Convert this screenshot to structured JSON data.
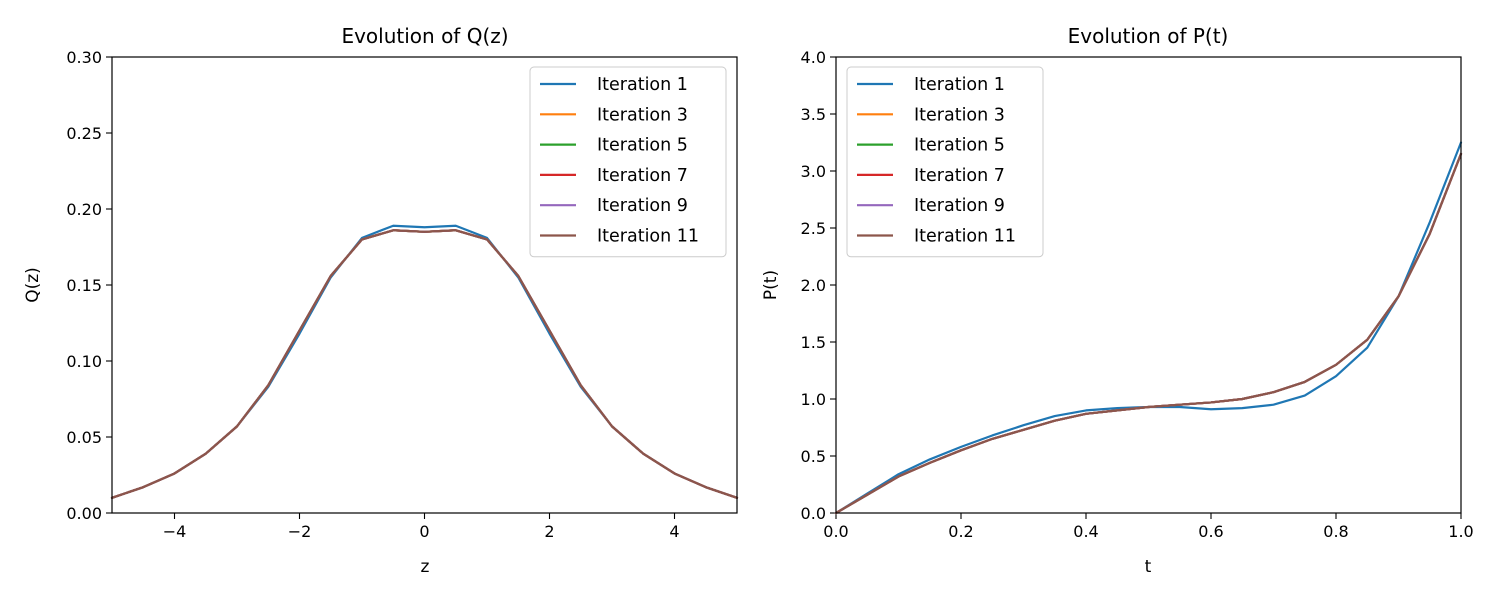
{
  "colors": {
    "Iteration 1": "#1f77b4",
    "Iteration 3": "#ff7f0e",
    "Iteration 5": "#2ca02c",
    "Iteration 7": "#d62728",
    "Iteration 9": "#9467bd",
    "Iteration 11": "#8c564b"
  },
  "chart_data": [
    {
      "type": "line",
      "title": "Evolution of Q(z)",
      "xlabel": "z",
      "ylabel": "Q(z)",
      "xlim": [
        -5,
        5
      ],
      "ylim": [
        0,
        0.3
      ],
      "xticks": [
        -4,
        -2,
        0,
        2,
        4
      ],
      "xtick_labels": [
        "−4",
        "−2",
        "0",
        "2",
        "4"
      ],
      "yticks": [
        0,
        0.05,
        0.1,
        0.15,
        0.2,
        0.25,
        0.3
      ],
      "ytick_labels": [
        "0.00",
        "0.05",
        "0.10",
        "0.15",
        "0.20",
        "0.25",
        "0.30"
      ],
      "legend_position": "top-right",
      "series": [
        {
          "name": "Iteration 1",
          "x": [
            -5,
            -4.5,
            -4,
            -3.5,
            -3,
            -2.5,
            -2,
            -1.5,
            -1,
            -0.5,
            0,
            0.5,
            1,
            1.5,
            2,
            2.5,
            3,
            3.5,
            4,
            4.5,
            5
          ],
          "y": [
            0.01,
            0.017,
            0.026,
            0.039,
            0.057,
            0.083,
            0.118,
            0.155,
            0.181,
            0.189,
            0.188,
            0.189,
            0.181,
            0.155,
            0.118,
            0.083,
            0.057,
            0.039,
            0.026,
            0.017,
            0.01
          ]
        },
        {
          "name": "Iteration 3",
          "x": [
            -5,
            -4.5,
            -4,
            -3.5,
            -3,
            -2.5,
            -2,
            -1.5,
            -1,
            -0.5,
            0,
            0.5,
            1,
            1.5,
            2,
            2.5,
            3,
            3.5,
            4,
            4.5,
            5
          ],
          "y": [
            0.01,
            0.017,
            0.026,
            0.039,
            0.057,
            0.084,
            0.12,
            0.156,
            0.18,
            0.186,
            0.185,
            0.186,
            0.18,
            0.156,
            0.12,
            0.084,
            0.057,
            0.039,
            0.026,
            0.017,
            0.01
          ]
        },
        {
          "name": "Iteration 5",
          "x": [
            -5,
            -4.5,
            -4,
            -3.5,
            -3,
            -2.5,
            -2,
            -1.5,
            -1,
            -0.5,
            0,
            0.5,
            1,
            1.5,
            2,
            2.5,
            3,
            3.5,
            4,
            4.5,
            5
          ],
          "y": [
            0.01,
            0.017,
            0.026,
            0.039,
            0.057,
            0.084,
            0.12,
            0.156,
            0.18,
            0.186,
            0.185,
            0.186,
            0.18,
            0.156,
            0.12,
            0.084,
            0.057,
            0.039,
            0.026,
            0.017,
            0.01
          ]
        },
        {
          "name": "Iteration 7",
          "x": [
            -5,
            -4.5,
            -4,
            -3.5,
            -3,
            -2.5,
            -2,
            -1.5,
            -1,
            -0.5,
            0,
            0.5,
            1,
            1.5,
            2,
            2.5,
            3,
            3.5,
            4,
            4.5,
            5
          ],
          "y": [
            0.01,
            0.017,
            0.026,
            0.039,
            0.057,
            0.084,
            0.12,
            0.156,
            0.18,
            0.186,
            0.185,
            0.186,
            0.18,
            0.156,
            0.12,
            0.084,
            0.057,
            0.039,
            0.026,
            0.017,
            0.01
          ]
        },
        {
          "name": "Iteration 9",
          "x": [
            -5,
            -4.5,
            -4,
            -3.5,
            -3,
            -2.5,
            -2,
            -1.5,
            -1,
            -0.5,
            0,
            0.5,
            1,
            1.5,
            2,
            2.5,
            3,
            3.5,
            4,
            4.5,
            5
          ],
          "y": [
            0.01,
            0.017,
            0.026,
            0.039,
            0.057,
            0.084,
            0.12,
            0.156,
            0.18,
            0.186,
            0.185,
            0.186,
            0.18,
            0.156,
            0.12,
            0.084,
            0.057,
            0.039,
            0.026,
            0.017,
            0.01
          ]
        },
        {
          "name": "Iteration 11",
          "x": [
            -5,
            -4.5,
            -4,
            -3.5,
            -3,
            -2.5,
            -2,
            -1.5,
            -1,
            -0.5,
            0,
            0.5,
            1,
            1.5,
            2,
            2.5,
            3,
            3.5,
            4,
            4.5,
            5
          ],
          "y": [
            0.01,
            0.017,
            0.026,
            0.039,
            0.057,
            0.084,
            0.12,
            0.156,
            0.18,
            0.186,
            0.185,
            0.186,
            0.18,
            0.156,
            0.12,
            0.084,
            0.057,
            0.039,
            0.026,
            0.017,
            0.01
          ]
        }
      ]
    },
    {
      "type": "line",
      "title": "Evolution of P(t)",
      "xlabel": "t",
      "ylabel": "P(t)",
      "xlim": [
        0,
        1
      ],
      "ylim": [
        0,
        4
      ],
      "xticks": [
        0,
        0.2,
        0.4,
        0.6,
        0.8,
        1.0
      ],
      "xtick_labels": [
        "0.0",
        "0.2",
        "0.4",
        "0.6",
        "0.8",
        "1.0"
      ],
      "yticks": [
        0,
        0.5,
        1,
        1.5,
        2,
        2.5,
        3,
        3.5,
        4
      ],
      "ytick_labels": [
        "0.0",
        "0.5",
        "1.0",
        "1.5",
        "2.0",
        "2.5",
        "3.0",
        "3.5",
        "4.0"
      ],
      "legend_position": "top-left",
      "series": [
        {
          "name": "Iteration 1",
          "x": [
            0,
            0.05,
            0.1,
            0.15,
            0.2,
            0.25,
            0.3,
            0.35,
            0.4,
            0.45,
            0.5,
            0.55,
            0.6,
            0.65,
            0.7,
            0.75,
            0.8,
            0.85,
            0.9,
            0.95,
            1.0
          ],
          "y": [
            0.0,
            0.17,
            0.34,
            0.47,
            0.58,
            0.68,
            0.77,
            0.85,
            0.9,
            0.92,
            0.93,
            0.93,
            0.91,
            0.92,
            0.95,
            1.03,
            1.2,
            1.45,
            1.9,
            2.55,
            3.25
          ]
        },
        {
          "name": "Iteration 3",
          "x": [
            0,
            0.05,
            0.1,
            0.15,
            0.2,
            0.25,
            0.3,
            0.35,
            0.4,
            0.45,
            0.5,
            0.55,
            0.6,
            0.65,
            0.7,
            0.75,
            0.8,
            0.85,
            0.9,
            0.95,
            1.0
          ],
          "y": [
            0.0,
            0.16,
            0.32,
            0.44,
            0.55,
            0.65,
            0.73,
            0.81,
            0.87,
            0.9,
            0.93,
            0.95,
            0.97,
            1.0,
            1.06,
            1.15,
            1.3,
            1.52,
            1.9,
            2.45,
            3.15
          ]
        },
        {
          "name": "Iteration 5",
          "x": [
            0,
            0.05,
            0.1,
            0.15,
            0.2,
            0.25,
            0.3,
            0.35,
            0.4,
            0.45,
            0.5,
            0.55,
            0.6,
            0.65,
            0.7,
            0.75,
            0.8,
            0.85,
            0.9,
            0.95,
            1.0
          ],
          "y": [
            0.0,
            0.16,
            0.32,
            0.44,
            0.55,
            0.65,
            0.73,
            0.81,
            0.87,
            0.9,
            0.93,
            0.95,
            0.97,
            1.0,
            1.06,
            1.15,
            1.3,
            1.52,
            1.9,
            2.45,
            3.15
          ]
        },
        {
          "name": "Iteration 7",
          "x": [
            0,
            0.05,
            0.1,
            0.15,
            0.2,
            0.25,
            0.3,
            0.35,
            0.4,
            0.45,
            0.5,
            0.55,
            0.6,
            0.65,
            0.7,
            0.75,
            0.8,
            0.85,
            0.9,
            0.95,
            1.0
          ],
          "y": [
            0.0,
            0.16,
            0.32,
            0.44,
            0.55,
            0.65,
            0.73,
            0.81,
            0.87,
            0.9,
            0.93,
            0.95,
            0.97,
            1.0,
            1.06,
            1.15,
            1.3,
            1.52,
            1.9,
            2.45,
            3.15
          ]
        },
        {
          "name": "Iteration 9",
          "x": [
            0,
            0.05,
            0.1,
            0.15,
            0.2,
            0.25,
            0.3,
            0.35,
            0.4,
            0.45,
            0.5,
            0.55,
            0.6,
            0.65,
            0.7,
            0.75,
            0.8,
            0.85,
            0.9,
            0.95,
            1.0
          ],
          "y": [
            0.0,
            0.16,
            0.32,
            0.44,
            0.55,
            0.65,
            0.73,
            0.81,
            0.87,
            0.9,
            0.93,
            0.95,
            0.97,
            1.0,
            1.06,
            1.15,
            1.3,
            1.52,
            1.9,
            2.45,
            3.15
          ]
        },
        {
          "name": "Iteration 11",
          "x": [
            0,
            0.05,
            0.1,
            0.15,
            0.2,
            0.25,
            0.3,
            0.35,
            0.4,
            0.45,
            0.5,
            0.55,
            0.6,
            0.65,
            0.7,
            0.75,
            0.8,
            0.85,
            0.9,
            0.95,
            1.0
          ],
          "y": [
            0.0,
            0.16,
            0.32,
            0.44,
            0.55,
            0.65,
            0.73,
            0.81,
            0.87,
            0.9,
            0.93,
            0.95,
            0.97,
            1.0,
            1.06,
            1.15,
            1.3,
            1.52,
            1.9,
            2.45,
            3.15
          ]
        }
      ]
    }
  ]
}
